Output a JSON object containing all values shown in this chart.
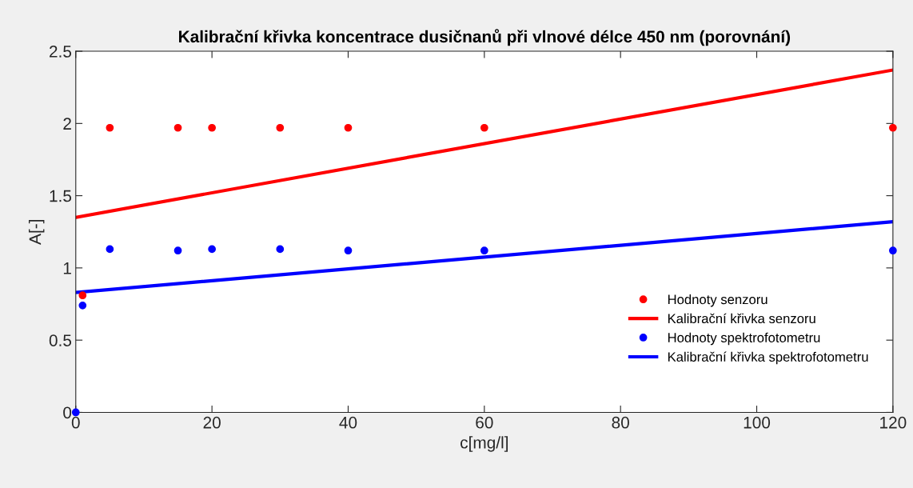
{
  "chart_data": {
    "type": "scatter",
    "title": "Kalibrační křivka koncentrace dusičnanů při vlnové délce 450 nm (porovnání)",
    "xlabel": "c[mg/l]",
    "ylabel": "A[-]",
    "series": [
      {
        "name": "Hodnoty senzoru",
        "color": "#ff0000",
        "x": [
          1,
          5,
          15,
          20,
          30,
          40,
          60,
          120
        ],
        "values": [
          0.81,
          1.97,
          1.97,
          1.97,
          1.97,
          1.97,
          1.97,
          1.97
        ]
      },
      {
        "name": "Kalibrační křivka senzoru",
        "type": "line",
        "color": "#ff0000",
        "x": [
          0,
          120
        ],
        "values": [
          1.35,
          2.37
        ]
      },
      {
        "name": "Hodnoty spektrofotometru",
        "color": "#0000ff",
        "x": [
          0,
          1,
          5,
          15,
          20,
          30,
          40,
          60,
          120
        ],
        "values": [
          0,
          0.74,
          1.13,
          1.12,
          1.13,
          1.13,
          1.12,
          1.12,
          1.12
        ]
      },
      {
        "name": "Kalibrační křivka spektrofotometru",
        "type": "line",
        "color": "#0000ff",
        "x": [
          0,
          120
        ],
        "values": [
          0.83,
          1.32
        ]
      }
    ],
    "xlim": [
      0,
      120
    ],
    "xticks": [
      0,
      20,
      40,
      60,
      80,
      100,
      120
    ],
    "ylim": [
      0,
      2.5
    ],
    "yticks": [
      0,
      0.5,
      1,
      1.5,
      2,
      2.5
    ],
    "legend": "bottom right",
    "grid": false
  }
}
